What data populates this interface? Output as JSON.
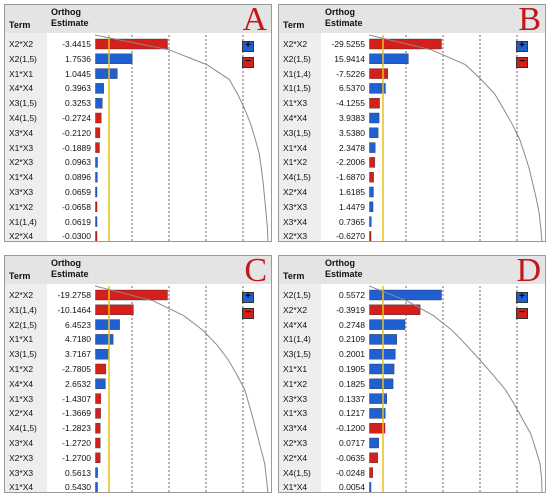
{
  "colors": {
    "positive": "#1f5fd1",
    "negative": "#d51f1a",
    "refline": "#e8c21a",
    "curve": "#8a8a8a",
    "letter": "#c0181c"
  },
  "legend": {
    "plus": "+",
    "minus": "−"
  },
  "chart_data": [
    {
      "type": "bar",
      "panel": "A",
      "header_term": "Term",
      "header_estimate_line1": "Orthog",
      "header_estimate_line2": "Estimate",
      "rows": [
        {
          "term": "X2*X2",
          "estimate": "-3.4415"
        },
        {
          "term": "X2(1,5)",
          "estimate": "1.7536"
        },
        {
          "term": "X1*X1",
          "estimate": "1.0445"
        },
        {
          "term": "X4*X4",
          "estimate": "0.3963"
        },
        {
          "term": "X3(1,5)",
          "estimate": "0.3253"
        },
        {
          "term": "X4(1,5)",
          "estimate": "-0.2724"
        },
        {
          "term": "X3*X4",
          "estimate": "-0.2120"
        },
        {
          "term": "X1*X3",
          "estimate": "-0.1889"
        },
        {
          "term": "X2*X3",
          "estimate": "0.0963"
        },
        {
          "term": "X1*X4",
          "estimate": "0.0896"
        },
        {
          "term": "X3*X3",
          "estimate": "0.0659"
        },
        {
          "term": "X1*X2",
          "estimate": "-0.0658"
        },
        {
          "term": "X1(1,4)",
          "estimate": "0.0619"
        },
        {
          "term": "X2*X4",
          "estimate": "-0.0300"
        }
      ]
    },
    {
      "type": "bar",
      "panel": "B",
      "header_term": "Term",
      "header_estimate_line1": "Orthog",
      "header_estimate_line2": "Estimate",
      "rows": [
        {
          "term": "X2*X2",
          "estimate": "-29.5255"
        },
        {
          "term": "X2(1,5)",
          "estimate": "15.9414"
        },
        {
          "term": "X1(1,4)",
          "estimate": "-7.5226"
        },
        {
          "term": "X1(1,5)",
          "estimate": "6.5370"
        },
        {
          "term": "X1*X3",
          "estimate": "-4.1255"
        },
        {
          "term": "X4*X4",
          "estimate": "3.9383"
        },
        {
          "term": "X3(1,5)",
          "estimate": "3.5380"
        },
        {
          "term": "X1*X4",
          "estimate": "2.3478"
        },
        {
          "term": "X1*X2",
          "estimate": "-2.2006"
        },
        {
          "term": "X4(1,5)",
          "estimate": "-1.6870"
        },
        {
          "term": "X2*X4",
          "estimate": "1.6185"
        },
        {
          "term": "X3*X3",
          "estimate": "1.4479"
        },
        {
          "term": "X3*X4",
          "estimate": "0.7365"
        },
        {
          "term": "X2*X3",
          "estimate": "-0.6270"
        }
      ]
    },
    {
      "type": "bar",
      "panel": "C",
      "header_term": "Term",
      "header_estimate_line1": "Orthog",
      "header_estimate_line2": "Estimate",
      "rows": [
        {
          "term": "X2*X2",
          "estimate": "-19.2758"
        },
        {
          "term": "X1(1,4)",
          "estimate": "-10.1464"
        },
        {
          "term": "X2(1,5)",
          "estimate": "6.4523"
        },
        {
          "term": "X1*X1",
          "estimate": "4.7180"
        },
        {
          "term": "X3(1,5)",
          "estimate": "3.7167"
        },
        {
          "term": "X1*X2",
          "estimate": "-2.7805"
        },
        {
          "term": "X4*X4",
          "estimate": "2.6532"
        },
        {
          "term": "X1*X3",
          "estimate": "-1.4307"
        },
        {
          "term": "X2*X4",
          "estimate": "-1.3669"
        },
        {
          "term": "X4(1,5)",
          "estimate": "-1.2823"
        },
        {
          "term": "X3*X4",
          "estimate": "-1.2720"
        },
        {
          "term": "X2*X3",
          "estimate": "-1.2700"
        },
        {
          "term": "X3*X3",
          "estimate": "0.5613"
        },
        {
          "term": "X1*X4",
          "estimate": "0.5430"
        }
      ]
    },
    {
      "type": "bar",
      "panel": "D",
      "header_term": "Term",
      "header_estimate_line1": "Orthog",
      "header_estimate_line2": "Estimate",
      "rows": [
        {
          "term": "X2(1,5)",
          "estimate": "0.5572"
        },
        {
          "term": "X2*X2",
          "estimate": "-0.3919"
        },
        {
          "term": "X4*X4",
          "estimate": "0.2748"
        },
        {
          "term": "X1(1,4)",
          "estimate": "0.2109"
        },
        {
          "term": "X3(1,5)",
          "estimate": "0.2001"
        },
        {
          "term": "X1*X1",
          "estimate": "0.1905"
        },
        {
          "term": "X1*X2",
          "estimate": "0.1825"
        },
        {
          "term": "X3*X3",
          "estimate": "0.1337"
        },
        {
          "term": "X1*X3",
          "estimate": "0.1217"
        },
        {
          "term": "X3*X4",
          "estimate": "-0.1200"
        },
        {
          "term": "X2*X3",
          "estimate": "0.0717"
        },
        {
          "term": "X2*X4",
          "estimate": "-0.0635"
        },
        {
          "term": "X4(1,5)",
          "estimate": "-0.0248"
        },
        {
          "term": "X1*X4",
          "estimate": "0.0054"
        }
      ]
    }
  ]
}
